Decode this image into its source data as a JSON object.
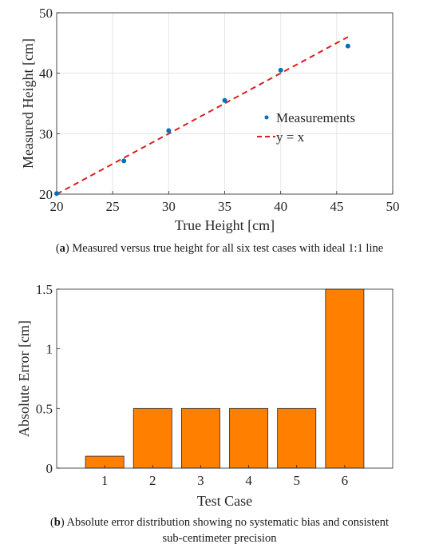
{
  "captions": {
    "a": {
      "tag": "a",
      "text": "Measured versus true height for all six test cases with ideal 1:1 line"
    },
    "b": {
      "tag": "b",
      "line1": "Absolute error distribution showing no systematic bias and consistent",
      "line2": "sub-centimeter precision"
    }
  },
  "colors": {
    "points": "#0072BD",
    "line": "#D9201E",
    "bars": "#FF8000",
    "axes": "#262626",
    "grid": "#E6E6E6"
  },
  "chart_data": [
    {
      "type": "scatter",
      "xlabel": "True Height [cm]",
      "ylabel": "Measured Height [cm]",
      "xlim": [
        20,
        50
      ],
      "ylim": [
        20,
        50
      ],
      "xticks": [
        20,
        25,
        30,
        35,
        40,
        45,
        50
      ],
      "yticks": [
        20,
        30,
        40,
        50
      ],
      "grid": true,
      "legend": {
        "position": "center-right",
        "entries": [
          "Measurements",
          "y = x"
        ]
      },
      "series": [
        {
          "name": "Measurements",
          "style": "points",
          "x": [
            20,
            26,
            30,
            35,
            40,
            46
          ],
          "y": [
            20.1,
            25.5,
            30.5,
            35.5,
            40.5,
            44.5
          ]
        },
        {
          "name": "y = x",
          "style": "dashed-line",
          "x": [
            20,
            46
          ],
          "y": [
            20,
            46
          ]
        }
      ]
    },
    {
      "type": "bar",
      "xlabel": "Test Case",
      "ylabel": "Absolute Error [cm]",
      "categories": [
        "1",
        "2",
        "3",
        "4",
        "5",
        "6"
      ],
      "values": [
        0.1,
        0.5,
        0.5,
        0.5,
        0.5,
        1.5
      ],
      "xlim": [
        0,
        7
      ],
      "ylim": [
        0,
        1.5
      ],
      "yticks": [
        "0",
        "0.5",
        "1",
        "1.5"
      ],
      "grid": false
    }
  ]
}
